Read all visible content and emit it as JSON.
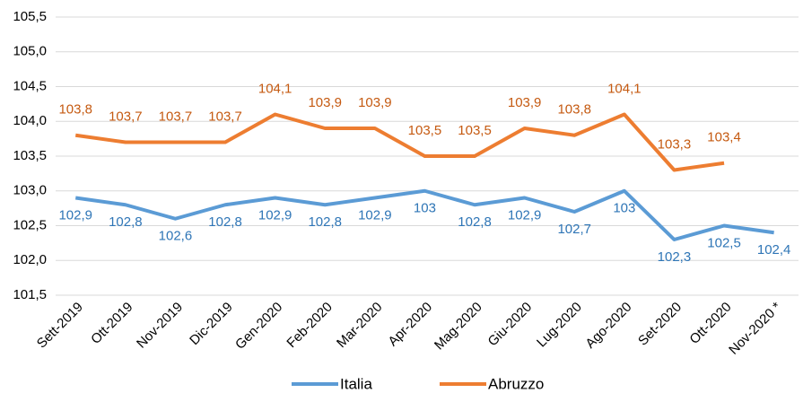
{
  "chart_data": {
    "type": "line",
    "categories": [
      "Sett-2019",
      "Ott-2019",
      "Nov-2019",
      "Dic-2019",
      "Gen-2020",
      "Feb-2020",
      "Mar-2020",
      "Apr-2020",
      "Mag-2020",
      "Giu-2020",
      "Lug-2020",
      "Ago-2020",
      "Set-2020",
      "Ott-2020",
      "Nov-2020 *"
    ],
    "series": [
      {
        "name": "Italia",
        "color": "#5b9bd5",
        "label_color": "#2e75b6",
        "label_position": "below",
        "values": [
          102.9,
          102.8,
          102.6,
          102.8,
          102.9,
          102.8,
          102.9,
          103,
          102.8,
          102.9,
          102.7,
          103,
          102.3,
          102.5,
          102.4
        ],
        "value_labels": [
          "102,9",
          "102,8",
          "102,6",
          "102,8",
          "102,9",
          "102,8",
          "102,9",
          "103",
          "102,8",
          "102,9",
          "102,7",
          "103",
          "102,3",
          "102,5",
          "102,4"
        ]
      },
      {
        "name": "Abruzzo",
        "color": "#ed7d31",
        "label_color": "#c55a11",
        "label_position": "above",
        "values": [
          103.8,
          103.7,
          103.7,
          103.7,
          104.1,
          103.9,
          103.9,
          103.5,
          103.5,
          103.9,
          103.8,
          104.1,
          103.3,
          103.4,
          null
        ],
        "value_labels": [
          "103,8",
          "103,7",
          "103,7",
          "103,7",
          "104,1",
          "103,9",
          "103,9",
          "103,5",
          "103,5",
          "103,9",
          "103,8",
          "104,1",
          "103,3",
          "103,4",
          null
        ]
      }
    ],
    "ylim": [
      101.5,
      105.5
    ],
    "yticks": [
      {
        "value": 101.5,
        "label": "101,5"
      },
      {
        "value": 102,
        "label": "102,0"
      },
      {
        "value": 102.5,
        "label": "102,5"
      },
      {
        "value": 103,
        "label": "103,0"
      },
      {
        "value": 103.5,
        "label": "103,5"
      },
      {
        "value": 104,
        "label": "104,0"
      },
      {
        "value": 104.5,
        "label": "104,5"
      },
      {
        "value": 105,
        "label": "105,0"
      },
      {
        "value": 105.5,
        "label": "105,5"
      }
    ],
    "grid": true,
    "legend": "bottom"
  }
}
